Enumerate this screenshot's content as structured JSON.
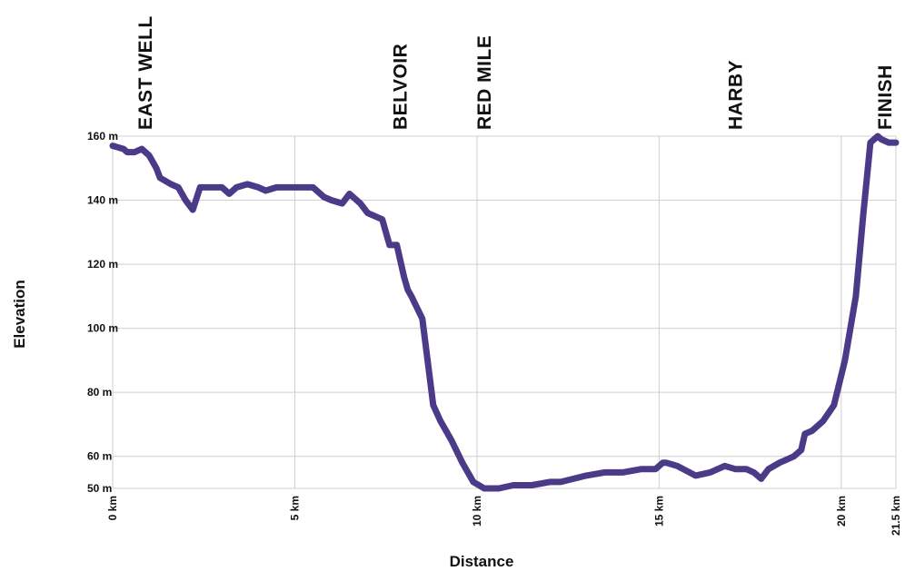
{
  "chart_data": {
    "type": "line",
    "xlabel": "Distance",
    "ylabel": "Elevation",
    "x_ticks": [
      {
        "value": 0,
        "label": "0 km"
      },
      {
        "value": 5,
        "label": "5 km"
      },
      {
        "value": 10,
        "label": "10 km"
      },
      {
        "value": 15,
        "label": "15 km"
      },
      {
        "value": 20,
        "label": "20 km"
      },
      {
        "value": 21.5,
        "label": "21.5 km"
      }
    ],
    "y_ticks": [
      {
        "value": 50,
        "label": "50 m"
      },
      {
        "value": 60,
        "label": "60 m"
      },
      {
        "value": 80,
        "label": "80 m"
      },
      {
        "value": 100,
        "label": "100 m"
      },
      {
        "value": 120,
        "label": "120 m"
      },
      {
        "value": 140,
        "label": "140 m"
      },
      {
        "value": 160,
        "label": "160 m"
      }
    ],
    "xlim": [
      0,
      21.5
    ],
    "ylim": [
      50,
      160
    ],
    "grid": true,
    "line_color": "#4b3a87",
    "landmarks": [
      {
        "label": "EAST WELL",
        "x": 0.9
      },
      {
        "label": "BELVOIR",
        "x": 7.9
      },
      {
        "label": "RED MILE",
        "x": 10.2
      },
      {
        "label": "HARBY",
        "x": 17.1
      },
      {
        "label": "FINISH",
        "x": 21.2
      }
    ],
    "x": [
      0,
      0.3,
      0.4,
      0.6,
      0.8,
      1.0,
      1.2,
      1.3,
      1.6,
      1.8,
      2.0,
      2.2,
      2.4,
      2.7,
      3.0,
      3.2,
      3.4,
      3.7,
      4.0,
      4.2,
      4.5,
      4.8,
      5.0,
      5.3,
      5.5,
      5.8,
      6.0,
      6.3,
      6.5,
      6.6,
      6.8,
      7.0,
      7.2,
      7.4,
      7.6,
      7.8,
      8.0,
      8.1,
      8.2,
      8.5,
      8.8,
      9.0,
      9.3,
      9.6,
      9.9,
      10.2,
      10.6,
      11.0,
      11.5,
      12.0,
      12.3,
      13.0,
      13.5,
      14.0,
      14.5,
      14.9,
      15.1,
      15.2,
      15.5,
      16.0,
      16.4,
      16.8,
      17.1,
      17.4,
      17.6,
      17.8,
      18.0,
      18.3,
      18.5,
      18.7,
      18.9,
      19.0,
      19.2,
      19.5,
      19.8,
      20.1,
      20.4,
      20.6,
      20.8,
      21.0,
      21.1,
      21.3,
      21.5
    ],
    "y": [
      157,
      156,
      155,
      155,
      156,
      154,
      150,
      147,
      145,
      144,
      140,
      137,
      144,
      144,
      144,
      142,
      144,
      145,
      144,
      143,
      144,
      144,
      144,
      144,
      144,
      141,
      140,
      139,
      142,
      141,
      139,
      136,
      135,
      134,
      126,
      126,
      116,
      112,
      110,
      103,
      76,
      71,
      65,
      58,
      52,
      50,
      50,
      51,
      51,
      52,
      52,
      54,
      55,
      55,
      56,
      56,
      58,
      58,
      57,
      54,
      55,
      57,
      56,
      56,
      55,
      53,
      56,
      58,
      59,
      60,
      62,
      67,
      68,
      71,
      76,
      90,
      110,
      135,
      158,
      160,
      159,
      158,
      158
    ]
  }
}
